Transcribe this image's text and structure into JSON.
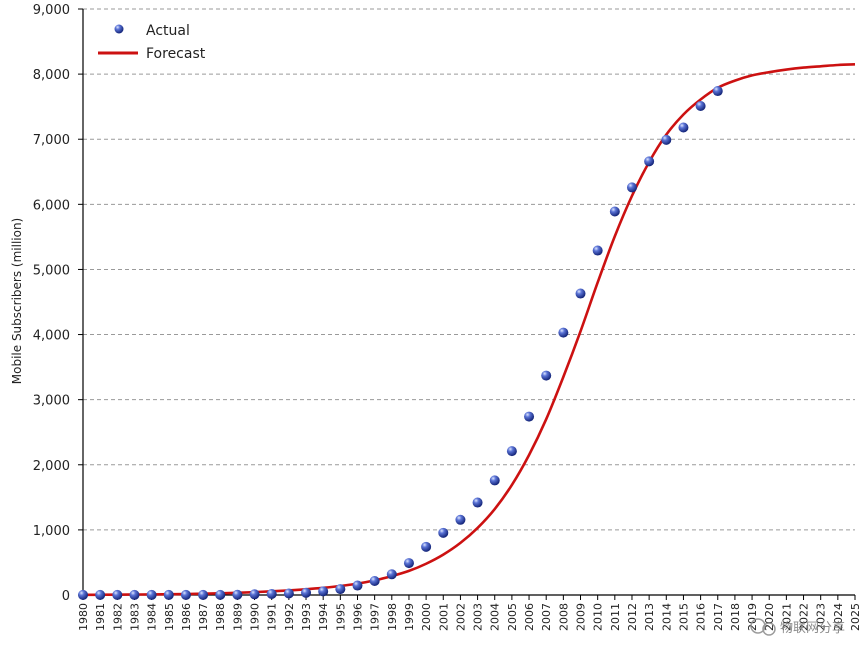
{
  "chart_data": {
    "type": "line",
    "title": "",
    "xlabel": "",
    "ylabel": "Mobile Subscribers (million)",
    "ylim": [
      0,
      9000
    ],
    "y_ticks": [
      "0",
      "1,000",
      "2,000",
      "3,000",
      "4,000",
      "5,000",
      "6,000",
      "7,000",
      "8,000",
      "9,000"
    ],
    "y_tick_values": [
      0,
      1000,
      2000,
      3000,
      4000,
      5000,
      6000,
      7000,
      8000,
      9000
    ],
    "x_range": [
      1980,
      2025
    ],
    "x_ticks": [
      "1980",
      "1981",
      "1982",
      "1983",
      "1984",
      "1985",
      "1986",
      "1987",
      "1988",
      "1989",
      "1990",
      "1991",
      "1992",
      "1993",
      "1994",
      "1995",
      "1996",
      "1997",
      "1998",
      "1999",
      "2000",
      "2001",
      "2002",
      "2003",
      "2004",
      "2005",
      "2006",
      "2007",
      "2008",
      "2009",
      "2010",
      "2011",
      "2012",
      "2013",
      "2014",
      "2015",
      "2016",
      "2017",
      "2018",
      "2019",
      "2020",
      "2021",
      "2022",
      "2023",
      "2024",
      "2025"
    ],
    "grid": true,
    "legend": {
      "position": "top-left",
      "entries": [
        "Actual",
        "Forecast"
      ]
    },
    "series": [
      {
        "name": "Actual",
        "kind": "scatter",
        "color": "#2a3f9e",
        "x": [
          1980,
          1981,
          1982,
          1983,
          1984,
          1985,
          1986,
          1987,
          1988,
          1989,
          1990,
          1991,
          1992,
          1993,
          1994,
          1995,
          1996,
          1997,
          1998,
          1999,
          2000,
          2001,
          2002,
          2003,
          2004,
          2005,
          2006,
          2007,
          2008,
          2009,
          2010,
          2011,
          2012,
          2013,
          2014,
          2015,
          2016,
          2017
        ],
        "values": [
          1,
          1,
          1,
          1,
          1,
          1,
          1,
          1,
          2,
          4,
          11,
          16,
          23,
          34,
          56,
          91,
          145,
          215,
          318,
          490,
          740,
          955,
          1155,
          1420,
          1760,
          2210,
          2740,
          3370,
          4030,
          4630,
          5290,
          5890,
          6260,
          6660,
          6990,
          7180,
          7510,
          7740
        ]
      },
      {
        "name": "Forecast",
        "kind": "line",
        "color": "#cc1111",
        "x": [
          1980,
          1981,
          1982,
          1983,
          1984,
          1985,
          1986,
          1987,
          1988,
          1989,
          1990,
          1991,
          1992,
          1993,
          1994,
          1995,
          1996,
          1997,
          1998,
          1999,
          2000,
          2001,
          2002,
          2003,
          2004,
          2005,
          2006,
          2007,
          2008,
          2009,
          2010,
          2011,
          2012,
          2013,
          2014,
          2015,
          2016,
          2017,
          2018,
          2019,
          2020,
          2021,
          2022,
          2023,
          2024,
          2025
        ],
        "values": [
          3,
          4,
          5,
          7,
          9,
          12,
          15,
          20,
          26,
          34,
          44,
          56,
          70,
          88,
          110,
          138,
          175,
          225,
          290,
          370,
          480,
          620,
          800,
          1030,
          1320,
          1690,
          2150,
          2700,
          3350,
          4050,
          4800,
          5510,
          6130,
          6650,
          7070,
          7380,
          7610,
          7790,
          7900,
          7980,
          8030,
          8070,
          8100,
          8120,
          8140,
          8150
        ]
      }
    ]
  },
  "watermark": {
    "text": "物联网分享"
  },
  "colors": {
    "grid": "#9a9a9a",
    "forecast": "#cc1111",
    "actual": "#2a3f9e"
  }
}
